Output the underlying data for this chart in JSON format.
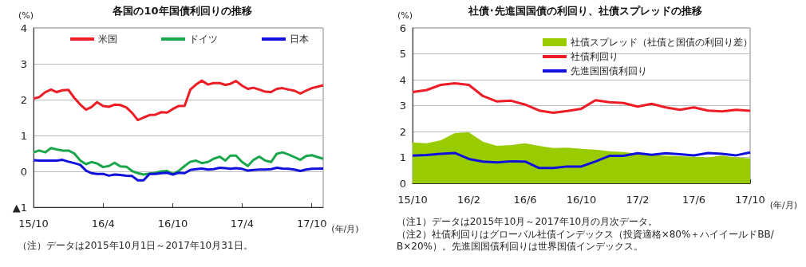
{
  "chart_data": [
    {
      "type": "line",
      "title": "各国の10年国債利回りの推移",
      "ylabel": "(%)",
      "xlabel": "(年/月)",
      "x": [
        "2015-10-01",
        "2015-10-16",
        "2015-11-01",
        "2015-11-16",
        "2015-12-01",
        "2015-12-16",
        "2016-01-01",
        "2016-01-16",
        "2016-02-01",
        "2016-02-16",
        "2016-03-01",
        "2016-03-16",
        "2016-04-01",
        "2016-04-16",
        "2016-05-01",
        "2016-05-16",
        "2016-06-01",
        "2016-06-16",
        "2016-07-01",
        "2016-07-16",
        "2016-08-01",
        "2016-08-16",
        "2016-09-01",
        "2016-09-16",
        "2016-10-01",
        "2016-10-16",
        "2016-11-01",
        "2016-11-16",
        "2016-12-01",
        "2016-12-16",
        "2017-01-01",
        "2017-01-16",
        "2017-02-01",
        "2017-02-16",
        "2017-03-01",
        "2017-03-16",
        "2017-04-01",
        "2017-04-16",
        "2017-05-01",
        "2017-05-16",
        "2017-06-01",
        "2017-06-16",
        "2017-07-01",
        "2017-07-16",
        "2017-08-01",
        "2017-08-16",
        "2017-09-01",
        "2017-09-16",
        "2017-10-01",
        "2017-10-31"
      ],
      "series": [
        {
          "name": "米国",
          "color": "#ee1c25",
          "values": [
            2.03,
            2.07,
            2.21,
            2.28,
            2.21,
            2.26,
            2.27,
            2.05,
            1.86,
            1.72,
            1.79,
            1.93,
            1.82,
            1.8,
            1.86,
            1.85,
            1.78,
            1.63,
            1.43,
            1.5,
            1.57,
            1.58,
            1.65,
            1.64,
            1.74,
            1.82,
            1.83,
            2.28,
            2.42,
            2.53,
            2.42,
            2.46,
            2.46,
            2.41,
            2.44,
            2.52,
            2.39,
            2.3,
            2.33,
            2.28,
            2.22,
            2.21,
            2.3,
            2.32,
            2.28,
            2.25,
            2.17,
            2.25,
            2.32,
            2.4
          ]
        },
        {
          "name": "ドイツ",
          "color": "#1aa64b",
          "values": [
            0.53,
            0.58,
            0.53,
            0.65,
            0.61,
            0.58,
            0.58,
            0.5,
            0.3,
            0.2,
            0.26,
            0.22,
            0.12,
            0.15,
            0.24,
            0.14,
            0.13,
            0.01,
            -0.05,
            -0.09,
            -0.06,
            -0.04,
            0,
            0.01,
            -0.07,
            0.01,
            0.15,
            0.27,
            0.3,
            0.23,
            0.26,
            0.35,
            0.41,
            0.3,
            0.44,
            0.44,
            0.26,
            0.15,
            0.32,
            0.41,
            0.3,
            0.26,
            0.49,
            0.53,
            0.47,
            0.4,
            0.32,
            0.43,
            0.45,
            0.35
          ]
        },
        {
          "name": "日本",
          "color": "#1010dd",
          "values": [
            0.31,
            0.3,
            0.3,
            0.3,
            0.3,
            0.32,
            0.27,
            0.23,
            0.18,
            0.02,
            -0.05,
            -0.07,
            -0.07,
            -0.12,
            -0.09,
            -0.1,
            -0.12,
            -0.13,
            -0.25,
            -0.25,
            -0.07,
            -0.07,
            -0.05,
            -0.04,
            -0.09,
            -0.04,
            -0.05,
            0.04,
            0.06,
            0.08,
            0.05,
            0.06,
            0.1,
            0.09,
            0.07,
            0.09,
            0.07,
            0.02,
            0.04,
            0.05,
            0.05,
            0.06,
            0.1,
            0.08,
            0.07,
            0.05,
            0.01,
            0.05,
            0.07,
            0.08
          ]
        }
      ],
      "xlim": [
        "2015-10-01",
        "2017-10-31"
      ],
      "xticks": [
        {
          "value": "2015-10-01",
          "label": "15/10"
        },
        {
          "value": "2016-04-01",
          "label": "16/4"
        },
        {
          "value": "2016-10-01",
          "label": "16/10"
        },
        {
          "value": "2017-04-01",
          "label": "17/4"
        },
        {
          "value": "2017-10-01",
          "label": "17/10"
        }
      ],
      "ylim": [
        -1,
        4
      ],
      "yticks": [
        {
          "value": -1,
          "label": "▲1"
        },
        0,
        1,
        2,
        3,
        4
      ],
      "grid": "y",
      "legend": "top",
      "marker": "none",
      "annotations": [
        "（注）データは2015年10月1日～2017年10月31日。"
      ]
    },
    {
      "type": "line",
      "title": "社債･先進国国債の利回り、社債スプレッドの推移",
      "ylabel": "(%)",
      "xlabel": "(年/月)",
      "categories": [
        "15/10",
        null,
        null,
        null,
        "16/2",
        null,
        null,
        null,
        "16/6",
        null,
        null,
        null,
        "16/10",
        null,
        null,
        null,
        "17/2",
        null,
        null,
        null,
        "17/6",
        null,
        null,
        null,
        "17/10"
      ],
      "series": [
        {
          "type": "area",
          "name": "社債スプレッド（社債と国債の利回り差）",
          "color": "#99cc00",
          "values": [
            1.58,
            1.55,
            1.66,
            1.94,
            1.97,
            1.61,
            1.45,
            1.48,
            1.55,
            1.45,
            1.36,
            1.38,
            1.33,
            1.3,
            1.24,
            1.21,
            1.15,
            1.09,
            1.07,
            1.05,
            1.02,
            1.0,
            1.07,
            1.0,
            0.96
          ]
        },
        {
          "name": "社債利回り",
          "color": "#ee1c25",
          "values": [
            3.52,
            3.6,
            3.8,
            3.86,
            3.8,
            3.37,
            3.16,
            3.19,
            3.04,
            2.81,
            2.72,
            2.79,
            2.88,
            3.21,
            3.13,
            3.1,
            2.96,
            3.07,
            2.93,
            2.84,
            2.93,
            2.81,
            2.78,
            2.84,
            2.8
          ]
        },
        {
          "name": "先進国国債利回り",
          "color": "#1010dd",
          "values": [
            1.07,
            1.09,
            1.14,
            1.17,
            0.94,
            0.84,
            0.81,
            0.85,
            0.84,
            0.59,
            0.59,
            0.65,
            0.65,
            0.84,
            1.06,
            1.06,
            1.16,
            1.1,
            1.16,
            1.12,
            1.08,
            1.17,
            1.14,
            1.08,
            1.19
          ]
        }
      ],
      "ylim": [
        0,
        6
      ],
      "yticks": [
        0,
        1,
        2,
        3,
        4,
        5,
        6
      ],
      "grid": "y",
      "legend": "top right",
      "marker": "none",
      "annotations": [
        "（注1）データは2015年10月～2017年10月の月次データ。",
        "（注2）社債利回りはグローバル社債インデックス（投資適格×80%＋ハイイールドBB/B×20%）。先進国国債利回りは世界国債インデックス。"
      ]
    }
  ]
}
